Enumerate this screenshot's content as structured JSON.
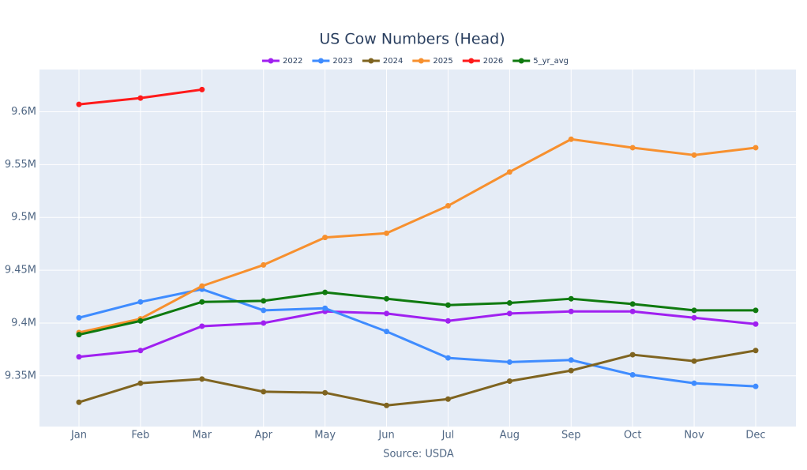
{
  "chart_data": {
    "type": "line",
    "title": "US Cow Numbers (Head)",
    "x_label": "Source: USDA",
    "categories": [
      "Jan",
      "Feb",
      "Mar",
      "Apr",
      "May",
      "Jun",
      "Jul",
      "Aug",
      "Sep",
      "Oct",
      "Nov",
      "Dec"
    ],
    "series": [
      {
        "name": "2022",
        "color": "#a020f0",
        "values": [
          9368000,
          9374000,
          9397000,
          9400000,
          9411000,
          9409000,
          9402000,
          9409000,
          9411000,
          9411000,
          9405000,
          9399000
        ]
      },
      {
        "name": "2023",
        "color": "#3f8cff",
        "values": [
          9405000,
          9420000,
          9432000,
          9412000,
          9414000,
          9392000,
          9367000,
          9363000,
          9365000,
          9351000,
          9343000,
          9340000
        ]
      },
      {
        "name": "2024",
        "color": "#7f6420",
        "values": [
          9325000,
          9343000,
          9347000,
          9335000,
          9334000,
          9322000,
          9328000,
          9345000,
          9355000,
          9370000,
          9364000,
          9374000
        ]
      },
      {
        "name": "2025",
        "color": "#f7902e",
        "values": [
          9391000,
          9404000,
          9435000,
          9455000,
          9481000,
          9485000,
          9511000,
          9543000,
          9574000,
          9566000,
          9559000,
          9566000
        ]
      },
      {
        "name": "2026",
        "color": "#ff1a1a",
        "values": [
          9607000,
          9613000,
          9621000,
          null,
          null,
          null,
          null,
          null,
          null,
          null,
          null,
          null
        ]
      },
      {
        "name": "5_yr_avg",
        "color": "#0f7a0f",
        "values": [
          9389000,
          9402000,
          9420000,
          9421000,
          9429000,
          9423000,
          9417000,
          9419000,
          9423000,
          9418000,
          9412000,
          9412000
        ]
      }
    ],
    "ylim": [
      9302000,
      9640000
    ],
    "yticks": [
      {
        "value": 9350000,
        "label": "9.35M"
      },
      {
        "value": 9400000,
        "label": "9.4M"
      },
      {
        "value": 9450000,
        "label": "9.45M"
      },
      {
        "value": 9500000,
        "label": "9.5M"
      },
      {
        "value": 9550000,
        "label": "9.55M"
      },
      {
        "value": 9600000,
        "label": "9.6M"
      }
    ],
    "grid": true,
    "legend_position": "top"
  }
}
